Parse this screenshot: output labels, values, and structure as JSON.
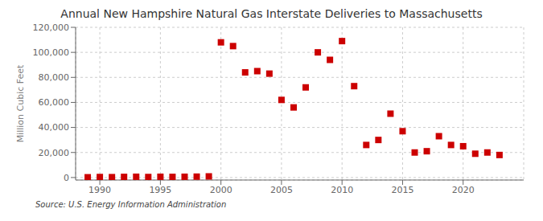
{
  "chart_data": {
    "type": "scatter",
    "title": "Annual New Hampshire Natural Gas Interstate Deliveries to Massachusetts",
    "ylabel": "Million Cubic Feet",
    "source": "Source: U.S. Energy Information Administration",
    "x": [
      1989,
      1990,
      1991,
      1992,
      1993,
      1994,
      1995,
      1996,
      1997,
      1998,
      1999,
      2000,
      2001,
      2002,
      2003,
      2004,
      2005,
      2006,
      2007,
      2008,
      2009,
      2010,
      2011,
      2012,
      2013,
      2014,
      2015,
      2016,
      2017,
      2018,
      2019,
      2020,
      2021,
      2022,
      2023
    ],
    "values": [
      200,
      400,
      300,
      500,
      600,
      400,
      600,
      500,
      600,
      700,
      900,
      108000,
      105000,
      84000,
      85000,
      83000,
      62000,
      56000,
      72000,
      100000,
      94000,
      109000,
      73000,
      26000,
      30000,
      51000,
      37000,
      20000,
      21000,
      33000,
      26000,
      25000,
      19000,
      20000,
      18000
    ],
    "color": "#cc0000",
    "marker": "square",
    "xlim": [
      1988,
      2025
    ],
    "ylim": [
      -2000,
      120000
    ],
    "xticks": [
      1990,
      1995,
      2000,
      2005,
      2010,
      2015,
      2020
    ],
    "yticks": [
      0,
      {
        "value": 20000,
        "label": "20,000"
      },
      {
        "value": 40000,
        "label": "40,000"
      },
      {
        "value": 60000,
        "label": "60,000"
      },
      {
        "value": 80000,
        "label": "80,000"
      },
      {
        "value": 100000,
        "label": "100,000"
      },
      {
        "value": 120000,
        "label": "120,000"
      }
    ],
    "grid": true
  }
}
